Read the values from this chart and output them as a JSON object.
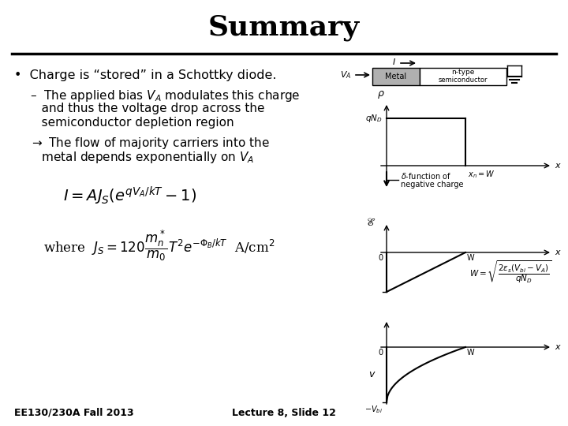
{
  "title": "Summary",
  "title_fontsize": 26,
  "title_fontweight": "bold",
  "bg_color": "#ffffff",
  "text_color": "#000000",
  "bullet1": "Charge is “stored” in a Schottky diode.",
  "sub1_line1": "–  The applied bias $V_A$ modulates this charge",
  "sub1_line2": "   and thus the voltage drop across the",
  "sub1_line3": "   semiconductor depletion region",
  "arrow_line1": "$\\rightarrow$ The flow of majority carriers into the",
  "arrow_line2": "   metal depends exponentially on $V_A$",
  "formula1": "$I = AJ_S(e^{qV_A/kT}-1)$",
  "formula2_pre": "where  $J_S = 120\\dfrac{m_n^*}{m_0}T^2e^{-\\Phi_B/kT}$  A/cm$^2$",
  "footer_left": "EE130/230A Fall 2013",
  "footer_right": "Lecture 8, Slide 12",
  "footer_fontsize": 9
}
